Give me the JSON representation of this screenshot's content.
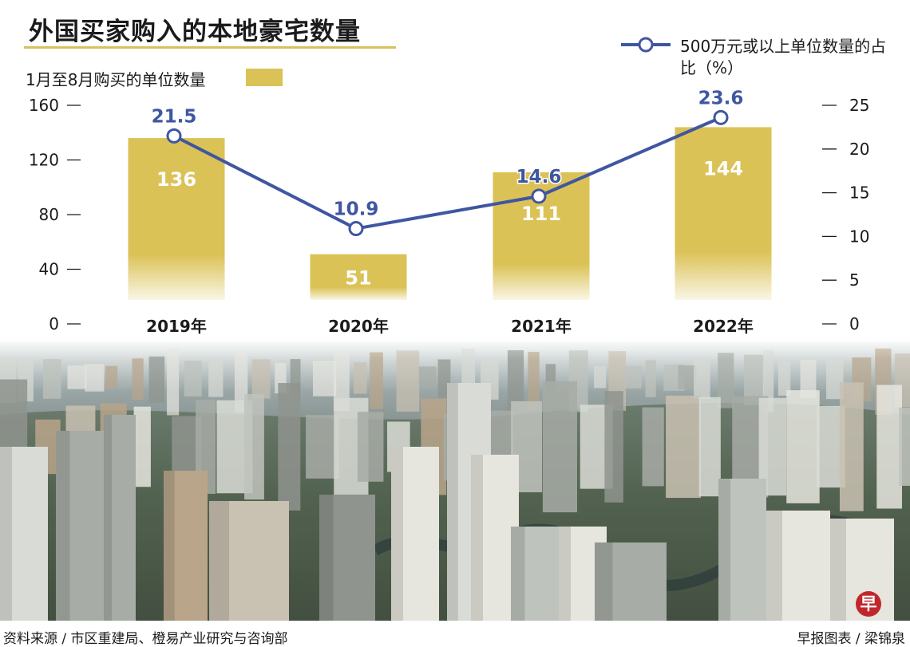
{
  "title": "外国买家购入的本地豪宅数量",
  "footer": {
    "source": "资料来源 / 市区重建局、橙易产业研究与咨询部",
    "credit": "早报图表 / 梁锦泉",
    "logo_char": "早"
  },
  "colors": {
    "bar": "#dbc256",
    "line": "#3f56a1",
    "bar_label": "#ffffff",
    "line_label": "#3f56a1",
    "rule": "#d8c15c"
  },
  "chart_data": {
    "type": "bar",
    "title": "外国买家购入的本地豪宅数量",
    "categories": [
      "2019年",
      "2020年",
      "2021年",
      "2022年"
    ],
    "ylim": [
      0,
      160
    ],
    "yticks": [
      0,
      40,
      80,
      120,
      160
    ],
    "y2lim": [
      0,
      25
    ],
    "y2ticks": [
      0,
      5,
      10,
      15,
      20,
      25
    ],
    "grid": false,
    "series": [
      {
        "name": "1月至8月购买的单位数量",
        "type": "bar",
        "axis": "left",
        "values": [
          136,
          51,
          111,
          144
        ]
      },
      {
        "name": "500万元或以上单位数量的占比（%）",
        "type": "line",
        "axis": "right",
        "values": [
          21.5,
          10.9,
          14.6,
          23.6
        ]
      }
    ]
  }
}
